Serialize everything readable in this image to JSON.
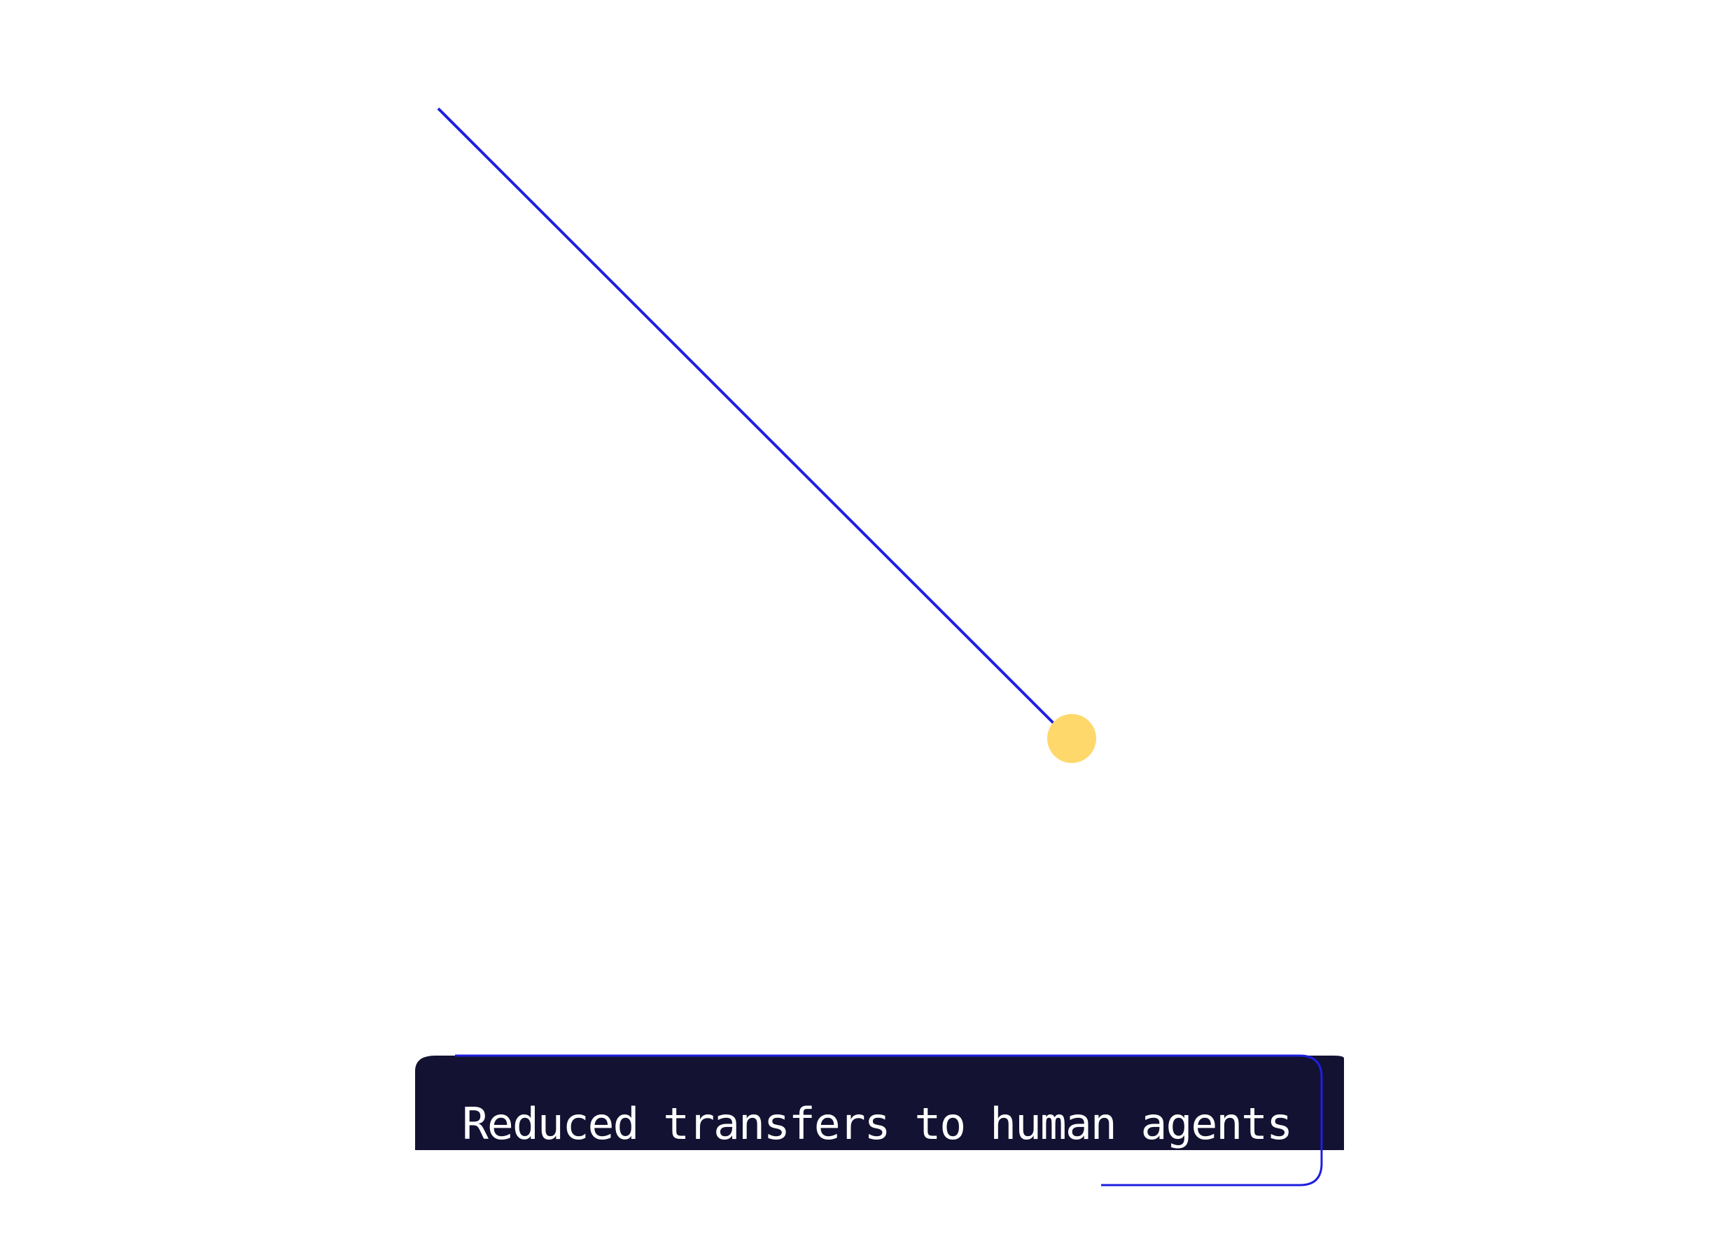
{
  "caption": {
    "text": "Reduced transfers to human agents"
  },
  "colors": {
    "background": "#ffffff",
    "line": "#1f1fe0",
    "dot": "#ffd86b",
    "banner": "#131232",
    "caption_text": "#ffffff"
  }
}
